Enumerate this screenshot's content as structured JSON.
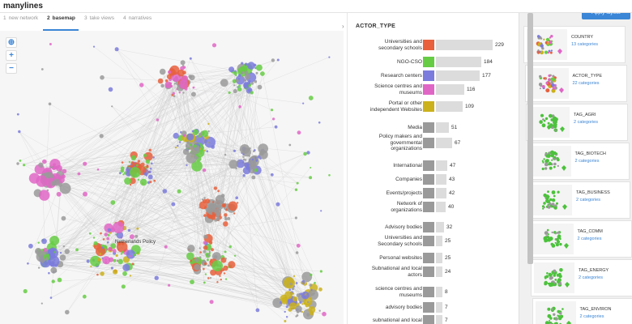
{
  "app": {
    "logo": "manylines"
  },
  "steps": [
    {
      "num": "1",
      "label": "new network",
      "active": false
    },
    {
      "num": "2",
      "label": "basemap",
      "active": true
    },
    {
      "num": "3",
      "label": "take views",
      "active": false
    },
    {
      "num": "4",
      "label": "narratives",
      "active": false
    }
  ],
  "canvas": {
    "zoom_buttons": [
      "⊕",
      "+",
      "−"
    ],
    "node_label": "Netherlands Policy"
  },
  "attribute": {
    "title": "ACTOR_TYPE",
    "collapse_icon": "›",
    "rows": [
      {
        "label": [
          "Universities and",
          "secondary schools"
        ],
        "count": 229,
        "color": "#e8603c"
      },
      {
        "label": [
          "NGO-CSO"
        ],
        "count": 184,
        "color": "#66cc44"
      },
      {
        "label": [
          "Research centers"
        ],
        "count": 177,
        "color": "#7b7bdd"
      },
      {
        "label": [
          "Science centres and",
          "museums"
        ],
        "count": 116,
        "color": "#e066c6"
      },
      {
        "label": [
          "Portal or other",
          "independent Websites"
        ],
        "count": 109,
        "color": "#cbb11b"
      },
      {
        "label": [
          "Media"
        ],
        "count": 51,
        "color": "#9a9a9a"
      },
      {
        "label": [
          "Policy makers and",
          "governmental",
          "organizations"
        ],
        "count": 67,
        "color": "#9a9a9a"
      },
      {
        "label": [
          "International"
        ],
        "count": 47,
        "color": "#9a9a9a"
      },
      {
        "label": [
          "Companies"
        ],
        "count": 43,
        "color": "#9a9a9a"
      },
      {
        "label": [
          "Events/projects"
        ],
        "count": 42,
        "color": "#9a9a9a"
      },
      {
        "label": [
          "Network of",
          "organizations"
        ],
        "count": 40,
        "color": "#9a9a9a"
      },
      {
        "label": [
          "Advisory bodies"
        ],
        "count": 32,
        "color": "#9a9a9a"
      },
      {
        "label": [
          "Universities and",
          "Secondary schools"
        ],
        "count": 25,
        "color": "#9a9a9a"
      },
      {
        "label": [
          "Personal websites"
        ],
        "count": 25,
        "color": "#9a9a9a"
      },
      {
        "label": [
          "Subnational and local",
          "actors"
        ],
        "count": 24,
        "color": "#9a9a9a"
      },
      {
        "label": [
          "science centres and",
          "museums"
        ],
        "count": 8,
        "color": "#9a9a9a"
      },
      {
        "label": [
          "advisory bodies"
        ],
        "count": 7,
        "color": "#9a9a9a"
      },
      {
        "label": [
          "subnational and local"
        ],
        "count": 7,
        "color": "#9a9a9a"
      }
    ]
  },
  "layout_panel": {
    "apply_label": "Apply layout",
    "cards": [
      {
        "name": "COUNTRY",
        "categories": "13 categories"
      },
      {
        "name": "ACTOR_TYPE",
        "categories": "22 categories"
      },
      {
        "name": "TAG_AGRI",
        "categories": "2 categories"
      },
      {
        "name": "TAG_BIOTECH",
        "categories": "2 categories"
      },
      {
        "name": "TAG_BUSINESS",
        "categories": "2 categories"
      },
      {
        "name": "TAG_COMM",
        "categories": "2 categories"
      },
      {
        "name": "TAG_ENERGY",
        "categories": "2 categories"
      },
      {
        "name": "TAG_ENVIRON",
        "categories": "2 categories"
      }
    ]
  }
}
